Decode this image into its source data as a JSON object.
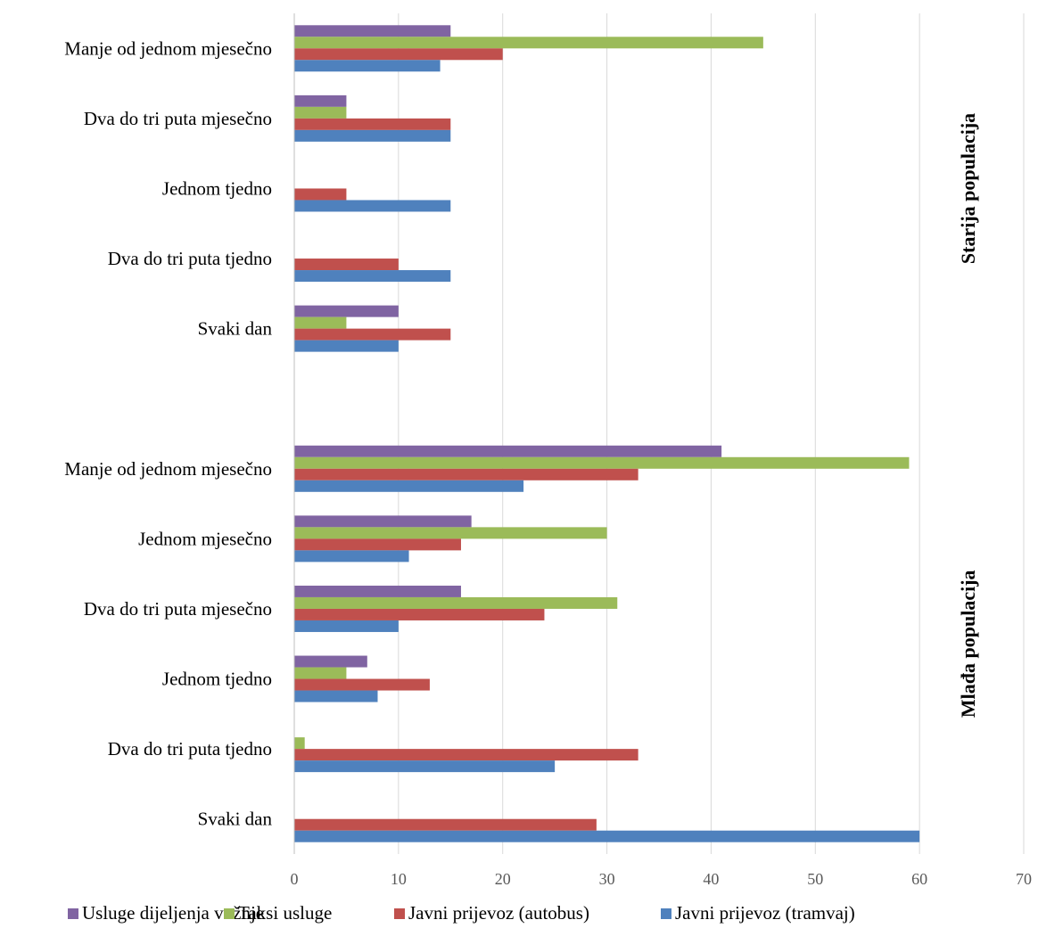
{
  "chart_data": {
    "type": "bar",
    "orientation": "horizontal",
    "xlim": [
      0,
      70
    ],
    "x_ticks": [
      "0",
      "10",
      "20",
      "30",
      "40",
      "50",
      "60",
      "70"
    ],
    "grid": "vertical",
    "legend_position": "bottom",
    "series_meta": [
      {
        "key": "dijeljenje",
        "name": "Usluge dijeljenja vožnje",
        "color": "#8064A2"
      },
      {
        "key": "taksi",
        "name": "Taksi usluge",
        "color": "#9BBB59"
      },
      {
        "key": "autobus",
        "name": "Javni prijevoz (autobus)",
        "color": "#C0504D"
      },
      {
        "key": "tramvaj",
        "name": "Javni prijevoz (tramvaj)",
        "color": "#4F81BD"
      }
    ],
    "groups": [
      {
        "label": "Starija populacija",
        "categories": [
          {
            "label": "Manje od jednom mjesečno",
            "dijeljenje": 15,
            "taksi": 45,
            "autobus": 20,
            "tramvaj": 14
          },
          {
            "label": "Dva do tri puta mjesečno",
            "dijeljenje": 5,
            "taksi": 5,
            "autobus": 15,
            "tramvaj": 15
          },
          {
            "label": "Jednom tjedno",
            "dijeljenje": 0,
            "taksi": 0,
            "autobus": 5,
            "tramvaj": 15
          },
          {
            "label": "Dva do tri puta tjedno",
            "dijeljenje": 0,
            "taksi": 0,
            "autobus": 10,
            "tramvaj": 15
          },
          {
            "label": "Svaki dan",
            "dijeljenje": 10,
            "taksi": 5,
            "autobus": 15,
            "tramvaj": 10
          }
        ]
      },
      {
        "label": "Mlađa populacija",
        "categories": [
          {
            "label": "Manje od jednom mjesečno",
            "dijeljenje": 41,
            "taksi": 59,
            "autobus": 33,
            "tramvaj": 22
          },
          {
            "label": "Jednom mjesečno",
            "dijeljenje": 17,
            "taksi": 30,
            "autobus": 16,
            "tramvaj": 11
          },
          {
            "label": "Dva do tri puta mjesečno",
            "dijeljenje": 16,
            "taksi": 31,
            "autobus": 24,
            "tramvaj": 10
          },
          {
            "label": "Jednom tjedno",
            "dijeljenje": 7,
            "taksi": 5,
            "autobus": 13,
            "tramvaj": 8
          },
          {
            "label": "Dva do tri puta tjedno",
            "dijeljenje": 0,
            "taksi": 1,
            "autobus": 33,
            "tramvaj": 25
          },
          {
            "label": "Svaki dan",
            "dijeljenje": 0,
            "taksi": 0,
            "autobus": 29,
            "tramvaj": 60
          }
        ]
      }
    ]
  }
}
